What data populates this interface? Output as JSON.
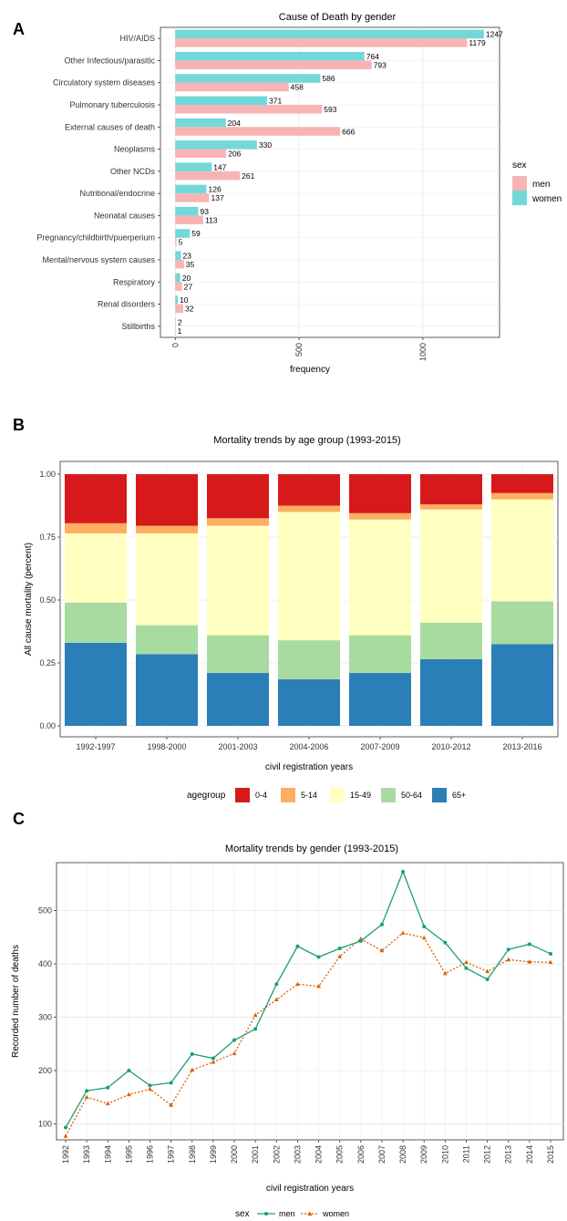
{
  "panels": {
    "a": "A",
    "b": "B",
    "c": "C"
  },
  "chart_data": [
    {
      "type": "bar",
      "orientation": "horizontal",
      "title": "Cause of Death by gender",
      "xlabel": "frequency",
      "ylabel": "",
      "xlim": [
        -60,
        1310
      ],
      "xticks": [
        0,
        500,
        1000
      ],
      "xtick_labels": [
        "0",
        "500",
        "1000"
      ],
      "categories": [
        "HIV/AIDS",
        "Other Infectious/parasitic",
        "Circulatory system diseases",
        "Pulmonary tuberculosis",
        "External causes of death",
        "Neoplasms",
        "Other NCDs",
        "Nutritional/endocrine",
        "Neonatal causes",
        "Pregnancy/childbirth/puerperium",
        "Mental/nervous system causes",
        "Respiratory",
        "Renal disorders",
        "Stillbirths"
      ],
      "series": [
        {
          "name": "women",
          "color": "#73D8D8",
          "values": [
            1247,
            764,
            586,
            371,
            204,
            330,
            147,
            126,
            93,
            59,
            23,
            20,
            10,
            2
          ]
        },
        {
          "name": "men",
          "color": "#F8B4B4",
          "values": [
            1179,
            793,
            458,
            593,
            666,
            206,
            261,
            137,
            113,
            5,
            35,
            27,
            32,
            1
          ]
        }
      ],
      "legend": {
        "title": "sex",
        "entries": [
          "men",
          "women"
        ],
        "colors": [
          "#F8B4B4",
          "#73D8D8"
        ],
        "position": "right"
      },
      "grid": true
    },
    {
      "type": "stacked-bar",
      "title": "Mortality trends by age group (1993-2015)",
      "xlabel": "civil registration years",
      "ylabel": "All cause mortality (percent)",
      "ylim": [
        0,
        1
      ],
      "yticks": [
        0,
        0.25,
        0.5,
        0.75,
        1
      ],
      "ytick_labels": [
        "0.00",
        "0.25",
        "0.50",
        "0.75",
        "1.00"
      ],
      "categories": [
        "1992-1997",
        "1998-2000",
        "2001-2003",
        "2004-2006",
        "2007-2009",
        "2010-2012",
        "2013-2016"
      ],
      "series": [
        {
          "name": "65+",
          "color": "#2B7FB8",
          "values": [
            0.33,
            0.285,
            0.21,
            0.185,
            0.21,
            0.265,
            0.325
          ]
        },
        {
          "name": "50-64",
          "color": "#A8DBA0",
          "values": [
            0.16,
            0.115,
            0.15,
            0.155,
            0.15,
            0.145,
            0.17
          ]
        },
        {
          "name": "15-49",
          "color": "#FFFFC0",
          "values": [
            0.275,
            0.365,
            0.435,
            0.51,
            0.46,
            0.45,
            0.405
          ]
        },
        {
          "name": "5-14",
          "color": "#FDAE61",
          "values": [
            0.04,
            0.03,
            0.03,
            0.025,
            0.025,
            0.02,
            0.025
          ]
        },
        {
          "name": "0-4",
          "color": "#D7191C",
          "values": [
            0.195,
            0.205,
            0.175,
            0.125,
            0.155,
            0.12,
            0.075
          ]
        }
      ],
      "legend": {
        "title": "agegroup",
        "entries": [
          "0-4",
          "5-14",
          "15-49",
          "50-64",
          "65+"
        ],
        "colors": [
          "#D7191C",
          "#FDAE61",
          "#FFFFC0",
          "#A8DBA0",
          "#2B7FB8"
        ],
        "position": "bottom"
      },
      "grid": true
    },
    {
      "type": "line",
      "title": "Mortality trends by gender (1993-2015)",
      "xlabel": "civil registration years",
      "ylabel": "Recorded number of deaths",
      "ylim": [
        70,
        590
      ],
      "yticks": [
        100,
        200,
        300,
        400,
        500
      ],
      "ytick_labels": [
        "100",
        "200",
        "300",
        "400",
        "500"
      ],
      "x": [
        "1992",
        "1993",
        "1994",
        "1995",
        "1996",
        "1997",
        "1998",
        "1999",
        "2000",
        "2001",
        "2002",
        "2003",
        "2004",
        "2005",
        "2006",
        "2007",
        "2008",
        "2009",
        "2010",
        "2011",
        "2012",
        "2013",
        "2014",
        "2015"
      ],
      "series": [
        {
          "name": "men",
          "color": "#1B9E77",
          "marker": "circle",
          "dash": "solid",
          "values": [
            93,
            162,
            168,
            200,
            172,
            177,
            231,
            223,
            257,
            278,
            362,
            433,
            413,
            429,
            443,
            474,
            573,
            470,
            440,
            392,
            371,
            427,
            437,
            419
          ]
        },
        {
          "name": "women",
          "color": "#D95F02",
          "marker": "triangle",
          "dash": "dotted",
          "values": [
            77,
            150,
            138,
            155,
            165,
            135,
            201,
            216,
            232,
            304,
            333,
            362,
            358,
            414,
            447,
            425,
            458,
            449,
            382,
            403,
            386,
            408,
            404,
            403
          ]
        }
      ],
      "legend": {
        "title": "sex",
        "entries": [
          "men",
          "women"
        ],
        "position": "bottom"
      },
      "grid": true
    }
  ]
}
